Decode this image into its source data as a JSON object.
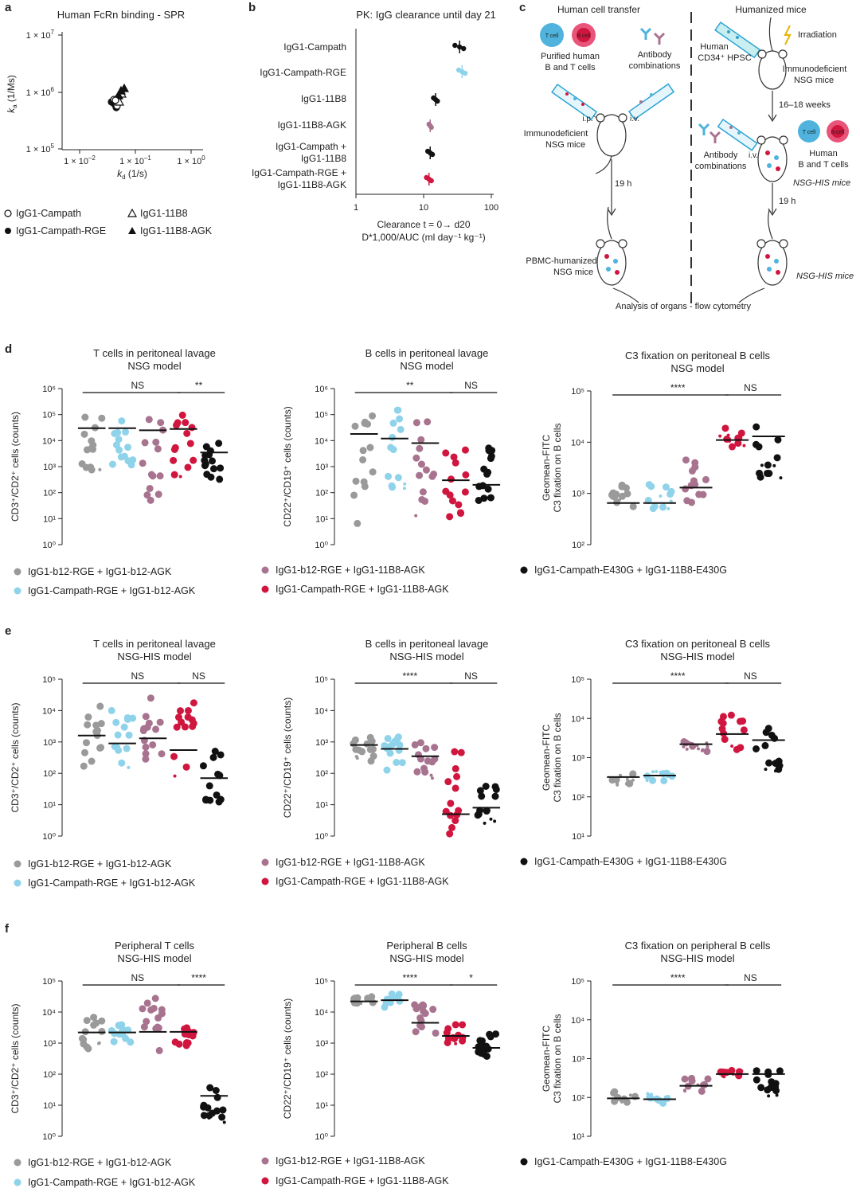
{
  "colors": {
    "grey": "#9a9a9a",
    "lightblue": "#8fd3ea",
    "mauve": "#a8738f",
    "red": "#d0163e",
    "black": "#111111",
    "blue": "#2aa3d3",
    "pink": "#e9557a"
  },
  "panel_letters": [
    "a",
    "b",
    "c",
    "d",
    "e",
    "f"
  ],
  "panel_a": {
    "title": "Human FcRn binding - SPR",
    "ylabel": "k_a (1/Ms)",
    "xlabel": "k_d (1/s)",
    "yticks": [
      "1 × 10^7",
      "1 × 10^6",
      "1 × 10^5"
    ],
    "xticks": [
      "1 × 10^-2",
      "1 × 10^-1",
      "1 × 10^0"
    ],
    "legend": [
      "IgG1-Campath",
      "IgG1-11B8",
      "IgG1-Campath-RGE",
      "IgG1-11B8-AGK"
    ]
  },
  "panel_b": {
    "title": "PK: IgG clearance until day 21",
    "rows": [
      "IgG1-Campath",
      "IgG1-Campath-RGE",
      "IgG1-11B8",
      "IgG1-11B8-AGK",
      "IgG1-Campath +",
      "IgG1-11B8",
      "IgG1-Campath-RGE +",
      "IgG1-11B8-AGK"
    ],
    "xticks": [
      "1",
      "10",
      "100"
    ],
    "xlabel1": "Clearance t = 0→ d20",
    "xlabel2": "D*1,000/AUC (ml day⁻¹ kg⁻¹)"
  },
  "panel_c": {
    "left_title": "Human cell transfer",
    "right_title": "Humanized mice",
    "tcell": "T cell",
    "bcell": "B cell",
    "purified": [
      "Purified human",
      "B and T cells"
    ],
    "antibody": [
      "Antibody",
      "combinations"
    ],
    "ip": "i.p.",
    "iv": "i.v.",
    "immunodeficient": [
      "Immunodeficient",
      "NSG mice"
    ],
    "time19": "19 h",
    "pbmc": [
      "PBMC-humanized",
      "NSG mice"
    ],
    "analysis": "Analysis of organs - flow cytometry",
    "hpsc": [
      "Human",
      "CD34⁺ HPSC"
    ],
    "irradiation": "Irradiation",
    "immunodeficient2": [
      "Immunodeficient",
      "NSG mice"
    ],
    "weeks": "16–18 weeks",
    "antibody2": [
      "Antibody",
      "combinations"
    ],
    "iv2": "i.v.",
    "human_bt": [
      "Human",
      "B and T cells"
    ],
    "nsghis": "NSG-HIS mice",
    "time19b": "19 h",
    "nsghis2": "NSG-HIS mice"
  },
  "legend_groups": [
    "IgG1-b12-RGE + IgG1-b12-AGK",
    "IgG1-Campath-RGE + IgG1-b12-AGK",
    "IgG1-b12-RGE + IgG1-11B8-AGK",
    "IgG1-Campath-RGE + IgG1-11B8-AGK",
    "IgG1-Campath-E430G + IgG1-11B8-E430G"
  ],
  "chart_data": [
    {
      "panel": "d",
      "type": "scatter",
      "title": [
        "T cells in peritoneal lavage",
        "NSG model"
      ],
      "ylabel": "CD3⁺/CD2⁺ cells (counts)",
      "ylim": [
        0,
        6
      ],
      "yscale": "log10",
      "medians": [
        30000,
        30000,
        25000,
        28000,
        3500
      ],
      "sig": [
        "NS",
        "**"
      ]
    },
    {
      "panel": "d",
      "type": "scatter",
      "title": [
        "B cells in peritoneal lavage",
        "NSG model"
      ],
      "ylabel": "CD22⁺/CD19⁺ cells (counts)",
      "ylim": [
        0,
        6
      ],
      "yscale": "log10",
      "medians": [
        18000,
        12000,
        8000,
        300,
        200
      ],
      "sig": [
        "**",
        "NS"
      ]
    },
    {
      "panel": "d",
      "type": "scatter",
      "title": [
        "C3 fixation on peritoneal B cells",
        "NSG model"
      ],
      "ylabel": "Geomean-FITC C3 fixation on B cells",
      "ylim": [
        2,
        5
      ],
      "yscale": "log10",
      "medians": [
        650,
        650,
        1300,
        11000,
        13000
      ],
      "sig": [
        "****",
        "NS"
      ]
    },
    {
      "panel": "e",
      "type": "scatter",
      "title": [
        "T cells in peritoneal lavage",
        "NSG-HIS model"
      ],
      "ylabel": "CD3⁺/CD2⁺ cells (counts)",
      "ylim": [
        0,
        5
      ],
      "yscale": "log10",
      "medians": [
        1600,
        900,
        1300,
        550,
        70
      ],
      "sig": [
        "NS",
        "NS"
      ]
    },
    {
      "panel": "e",
      "type": "scatter",
      "title": [
        "B cells in peritoneal lavage",
        "NSG-HIS model"
      ],
      "ylabel": "CD22⁺/CD19⁺ cells (counts)",
      "ylim": [
        0,
        5
      ],
      "yscale": "log10",
      "medians": [
        800,
        600,
        350,
        5,
        8
      ],
      "sig": [
        "****",
        "NS"
      ]
    },
    {
      "panel": "e",
      "type": "scatter",
      "title": [
        "C3 fixation on peritoneal B cells",
        "NSG-HIS model"
      ],
      "ylabel": "Geomean-FITC C3 fixation on B cells",
      "ylim": [
        1,
        5
      ],
      "yscale": "log10",
      "medians": [
        320,
        350,
        2200,
        4000,
        2800
      ],
      "sig": [
        "****",
        "NS"
      ]
    },
    {
      "panel": "f",
      "type": "scatter",
      "title": [
        "Peripheral T cells",
        "NSG-HIS model"
      ],
      "ylabel": "CD3⁺/CD2⁺ cells (counts)",
      "ylim": [
        0,
        5
      ],
      "yscale": "log10",
      "medians": [
        2200,
        2200,
        2300,
        2300,
        20
      ],
      "sig": [
        "NS",
        "****"
      ]
    },
    {
      "panel": "f",
      "type": "scatter",
      "title": [
        "Peripheral B cells",
        "NSG-HIS model"
      ],
      "ylabel": "CD22⁺/CD19⁺ cells (counts)",
      "ylim": [
        0,
        5
      ],
      "yscale": "log10",
      "medians": [
        22000,
        24000,
        4500,
        1700,
        700
      ],
      "sig": [
        "****",
        "*"
      ]
    },
    {
      "panel": "f",
      "type": "scatter",
      "title": [
        "C3 fixation on peripheral B cells",
        "NSG-HIS model"
      ],
      "ylabel": "Geomean-FITC C3 fixation on B cells",
      "ylim": [
        1,
        5
      ],
      "yscale": "log10",
      "medians": [
        95,
        90,
        200,
        400,
        400
      ],
      "sig": [
        "****",
        "NS"
      ]
    }
  ]
}
